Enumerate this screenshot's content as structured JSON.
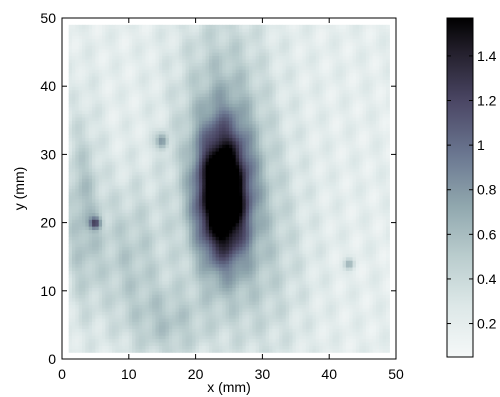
{
  "chart_data": {
    "type": "heatmap",
    "title": "",
    "xlabel": "x (mm)",
    "ylabel": "y (mm)",
    "xlim": [
      0,
      50
    ],
    "ylim": [
      0,
      50
    ],
    "x_ticks": [
      0,
      10,
      20,
      30,
      40,
      50
    ],
    "y_ticks": [
      0,
      10,
      20,
      30,
      40,
      50
    ],
    "data_extent": {
      "x": [
        1,
        49
      ],
      "y": [
        1,
        49
      ]
    },
    "colorbar": {
      "range": [
        0.05,
        1.57
      ],
      "ticks": [
        "0.2",
        "0.4",
        "0.6",
        "0.8",
        "1",
        "1.2",
        "1.4"
      ],
      "tick_values": [
        0.2,
        0.4,
        0.6,
        0.8,
        1.0,
        1.2,
        1.4
      ],
      "colormap": "bone (reversed)"
    },
    "grid": false,
    "features": [
      {
        "x": 24,
        "y": 24,
        "peak": 1.55,
        "sx": 2.6,
        "sy": 6.5
      },
      {
        "x": 24,
        "y": 31,
        "peak": 0.45,
        "sx": 5.0,
        "sy": 14.0
      },
      {
        "x": 15,
        "y": 32,
        "peak": 0.55,
        "sx": 0.6,
        "sy": 0.8
      },
      {
        "x": 5,
        "y": 20,
        "peak": 0.75,
        "sx": 0.6,
        "sy": 0.6
      },
      {
        "x": 3,
        "y": 22,
        "peak": 0.35,
        "sx": 2.0,
        "sy": 10.0
      },
      {
        "x": 10,
        "y": 15,
        "peak": 0.3,
        "sx": 4.0,
        "sy": 8.0
      },
      {
        "x": 30,
        "y": 15,
        "peak": 0.22,
        "sx": 5.0,
        "sy": 12.0
      },
      {
        "x": 16,
        "y": 5,
        "peak": 0.28,
        "sx": 4.0,
        "sy": 4.0
      },
      {
        "x": 43,
        "y": 14,
        "peak": 0.4,
        "sx": 0.5,
        "sy": 0.5
      }
    ],
    "background": 0.2,
    "colors": {
      "low": "#f2f6f6",
      "mid": "#8aa6a8",
      "high": "#000000"
    }
  }
}
